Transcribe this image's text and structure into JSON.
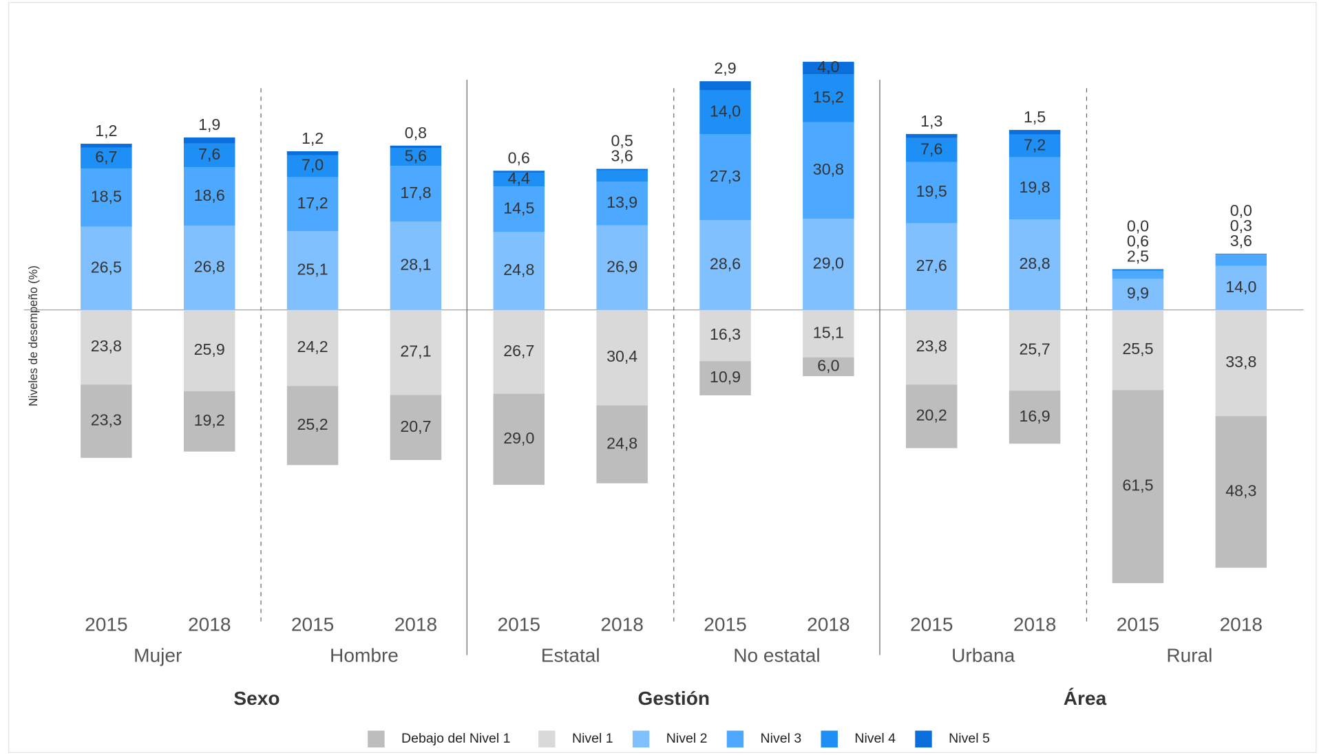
{
  "chart_data": {
    "type": "diverging-stacked-bar",
    "y_label": "Niveles de desempeño (%)",
    "categories": [
      "2015",
      "2018",
      "2015",
      "2018",
      "2015",
      "2018",
      "2015",
      "2018",
      "2015",
      "2018",
      "2015",
      "2018"
    ],
    "groups": [
      "Mujer",
      "Hombre",
      "Estatal",
      "No estatal",
      "Urbana",
      "Rural"
    ],
    "sections": [
      "Sexo",
      "Gestión",
      "Área"
    ],
    "series": [
      {
        "name": "Debajo del Nivel 1",
        "color": "#bdbdbd",
        "direction": "down",
        "values": [
          23.3,
          19.2,
          25.2,
          20.7,
          29.0,
          24.8,
          10.9,
          6.0,
          20.2,
          16.9,
          61.5,
          48.3
        ],
        "value_labels": [
          "23,3",
          "19,2",
          "25,2",
          "20,7",
          "29,0",
          "24,8",
          "10,9",
          "6,0",
          "20,2",
          "16,9",
          "61,5",
          "48,3"
        ]
      },
      {
        "name": "Nivel 1",
        "color": "#d9d9d9",
        "direction": "down",
        "values": [
          23.8,
          25.9,
          24.2,
          27.1,
          26.7,
          30.4,
          16.3,
          15.1,
          23.8,
          25.7,
          25.5,
          33.8
        ],
        "value_labels": [
          "23,8",
          "25,9",
          "24,2",
          "27,1",
          "26,7",
          "30,4",
          "16,3",
          "15,1",
          "23,8",
          "25,7",
          "25,5",
          "33,8"
        ]
      },
      {
        "name": "Nivel 2",
        "color": "#80c0ff",
        "direction": "up",
        "values": [
          26.5,
          26.8,
          25.1,
          28.1,
          24.8,
          26.9,
          28.6,
          29.0,
          27.6,
          28.8,
          9.9,
          14.0
        ],
        "value_labels": [
          "26,5",
          "26,8",
          "25,1",
          "28,1",
          "24,8",
          "26,9",
          "28,6",
          "29,0",
          "27,6",
          "28,8",
          "9,9",
          "14,0"
        ]
      },
      {
        "name": "Nivel 3",
        "color": "#4da8ff",
        "direction": "up",
        "values": [
          18.5,
          18.6,
          17.2,
          17.8,
          14.5,
          13.9,
          27.3,
          30.8,
          19.5,
          19.8,
          2.5,
          3.6
        ],
        "value_labels": [
          "18,5",
          "18,6",
          "17,2",
          "17,8",
          "14,5",
          "13,9",
          "27,3",
          "30,8",
          "19,5",
          "19,8",
          "2,5",
          "3,6"
        ]
      },
      {
        "name": "Nivel 4",
        "color": "#1e8ff5",
        "direction": "up",
        "values": [
          6.7,
          7.6,
          7.0,
          5.6,
          4.4,
          3.6,
          14.0,
          15.2,
          7.6,
          7.2,
          0.6,
          0.3
        ],
        "value_labels": [
          "6,7",
          "7,6",
          "7,0",
          "5,6",
          "4,4",
          "3,6",
          "14,0",
          "15,2",
          "7,6",
          "7,2",
          "0,6",
          "0,3"
        ]
      },
      {
        "name": "Nivel 5",
        "color": "#0a6fdc",
        "direction": "up",
        "values": [
          1.2,
          1.9,
          1.2,
          0.8,
          0.6,
          0.5,
          2.9,
          4.0,
          1.3,
          1.5,
          0.0,
          0.0
        ],
        "value_labels": [
          "1,2",
          "1,9",
          "1,2",
          "0,8",
          "0,6",
          "0,5",
          "2,9",
          "4,0",
          "1,3",
          "1,5",
          "0,0",
          "0,0"
        ]
      }
    ]
  }
}
